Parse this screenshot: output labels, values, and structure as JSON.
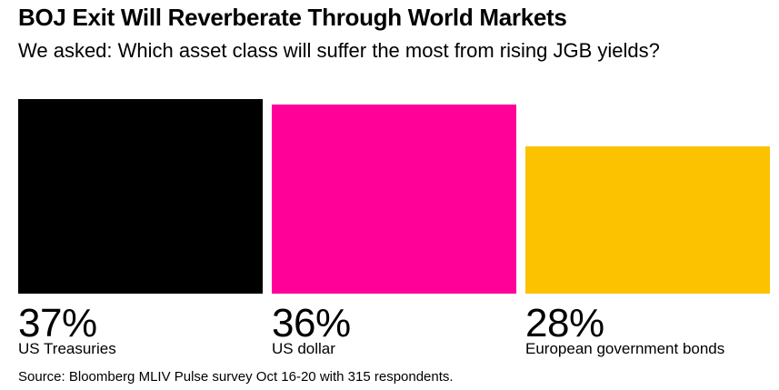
{
  "header": {
    "title": "BOJ Exit Will Reverberate Through World Markets",
    "subtitle": "We asked: Which asset class will suffer the most from rising JGB yields?"
  },
  "chart_data": {
    "type": "bar",
    "title": "BOJ Exit Will Reverberate Through World Markets",
    "subtitle": "We asked: Which asset class will suffer the most from rising JGB yields?",
    "categories": [
      "US Treasuries",
      "US dollar",
      "European government bonds"
    ],
    "values": [
      37,
      36,
      28
    ],
    "value_labels": [
      "37%",
      "36%",
      "28%"
    ],
    "colors": [
      "#000000",
      "#ff0099",
      "#fcc200"
    ],
    "ylim": [
      0,
      37
    ],
    "grid": false,
    "xlabel": "",
    "ylabel": ""
  },
  "footer": {
    "source": "Source: Bloomberg MLIV Pulse survey Oct 16-20 with 315 respondents."
  }
}
